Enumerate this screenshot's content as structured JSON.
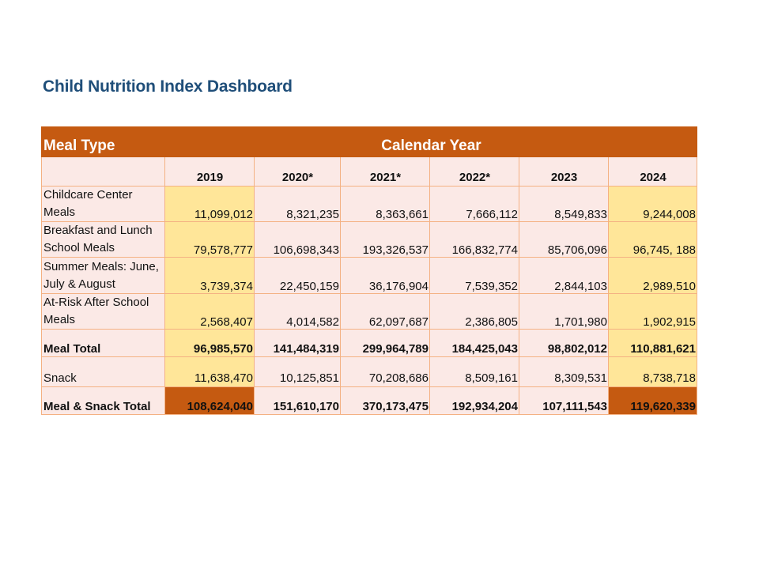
{
  "title": "Child Nutrition Index Dashboard",
  "table": {
    "meal_type_header": "Meal Type",
    "calendar_year_header": "Calendar Year",
    "years": [
      "2019",
      "2020*",
      "2021*",
      "2022*",
      "2023",
      "2024"
    ],
    "rows": [
      {
        "label": "Childcare Center Meals",
        "values": [
          "11,099,012",
          "8,321,235",
          "8,363,661",
          "7,666,112",
          "8,549,833",
          "9,244,008"
        ]
      },
      {
        "label": "Breakfast and Lunch School Meals",
        "values": [
          "79,578,777",
          "106,698,343",
          "193,326,537",
          "166,832,774",
          "85,706,096",
          "96,745, 188"
        ]
      },
      {
        "label": "Summer Meals: June, July & August",
        "values": [
          "3,739,374",
          "22,450,159",
          "36,176,904",
          "7,539,352",
          "2,844,103",
          "2,989,510"
        ]
      },
      {
        "label": "At-Risk After School  Meals",
        "values": [
          "2,568,407",
          "4,014,582",
          "62,097,687",
          "2,386,805",
          "1,701,980",
          "1,902,915"
        ]
      },
      {
        "label": "Meal Total",
        "values": [
          "96,985,570",
          "141,484,319",
          "299,964,789",
          "184,425,043",
          "98,802,012",
          "110,881,621"
        ]
      },
      {
        "label": "Snack",
        "values": [
          "11,638,470",
          "10,125,851",
          "70,208,686",
          "8,509,161",
          "8,309,531",
          "8,738,718"
        ]
      },
      {
        "label": "Meal & Snack Total",
        "values": [
          "108,624,040",
          "151,610,170",
          "370,173,475",
          "192,934,204",
          "107,111,543",
          "119,620,339"
        ]
      }
    ]
  },
  "colors": {
    "header_bg": "#c55a11",
    "title": "#1f4e79",
    "cell_bg": "#fbe9e6",
    "highlight": "#ffe699",
    "border": "#f4b183"
  }
}
